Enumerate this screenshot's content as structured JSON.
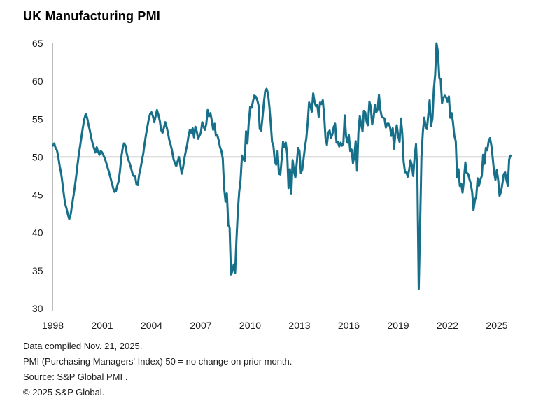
{
  "title": "UK Manufacturing PMI",
  "footer": {
    "line1": "Data compiled Nov. 21, 2025.",
    "line2": "PMI (Purchasing Managers' Index) 50 = no change on prior month.",
    "line3": "Source: S&P Global PMI .",
    "line4": "© 2025 S&P Global."
  },
  "chart_data": {
    "type": "line",
    "title": "UK Manufacturing PMI",
    "frequency": "monthly",
    "x_start": "1998-01",
    "x_end": "2025-11",
    "xlabel": "",
    "ylabel": "",
    "ylim": [
      30,
      65
    ],
    "yticks": [
      30,
      35,
      40,
      45,
      50,
      55,
      60,
      65
    ],
    "xticks": [
      1998,
      2001,
      2004,
      2007,
      2010,
      2013,
      2016,
      2019,
      2022,
      2025
    ],
    "reference_line": 50,
    "grid": "horizontal reference line at 50 only",
    "legend_position": "none",
    "line_color": "#17708a",
    "axis_color": "#a6a6a6",
    "series": [
      {
        "name": "UK Manufacturing PMI",
        "values": [
          51.5,
          51.8,
          51.2,
          50.9,
          50.0,
          48.8,
          47.9,
          46.6,
          45.1,
          43.8,
          43.2,
          42.4,
          41.8,
          42.4,
          43.6,
          44.8,
          46.0,
          47.4,
          49.0,
          50.4,
          51.6,
          52.8,
          54.0,
          55.0,
          55.7,
          55.2,
          54.3,
          53.5,
          52.6,
          51.8,
          51.2,
          50.6,
          51.3,
          50.7,
          50.3,
          50.8,
          50.6,
          50.2,
          49.8,
          49.2,
          48.6,
          48.0,
          47.3,
          46.6,
          45.9,
          45.4,
          45.5,
          46.2,
          46.8,
          48.2,
          50.0,
          51.2,
          51.8,
          51.5,
          50.4,
          49.7,
          49.2,
          48.6,
          47.9,
          47.5,
          47.5,
          46.4,
          46.3,
          47.7,
          48.5,
          49.5,
          50.5,
          51.8,
          53.0,
          54.0,
          55.0,
          55.7,
          55.9,
          55.4,
          54.6,
          55.4,
          56.2,
          55.6,
          54.8,
          53.6,
          53.2,
          53.8,
          54.6,
          54.0,
          53.2,
          52.2,
          51.6,
          50.8,
          49.8,
          49.2,
          48.8,
          49.4,
          50.0,
          49.0,
          47.8,
          48.6,
          49.8,
          50.8,
          51.6,
          52.8,
          53.6,
          53.2,
          53.8,
          52.6,
          54.0,
          53.4,
          52.4,
          52.8,
          53.2,
          54.6,
          54.0,
          53.6,
          54.4,
          56.2,
          55.4,
          55.8,
          54.8,
          53.6,
          54.4,
          52.8,
          52.9,
          52.2,
          51.3,
          50.8,
          49.8,
          45.9,
          44.1,
          45.2,
          41.0,
          40.7,
          34.5,
          34.9,
          35.8,
          34.7,
          39.1,
          42.9,
          45.4,
          47.0,
          50.2,
          49.7,
          49.5,
          53.4,
          51.8,
          54.6,
          56.6,
          56.5,
          57.3,
          58.1,
          58.0,
          57.6,
          56.9,
          53.7,
          53.5,
          55.2,
          57.2,
          58.7,
          59.0,
          58.4,
          56.7,
          54.4,
          52.0,
          51.4,
          49.4,
          49.0,
          50.8,
          47.8,
          47.7,
          49.7,
          52.0,
          51.3,
          51.9,
          50.4,
          45.9,
          48.4,
          45.2,
          49.6,
          48.1,
          47.3,
          49.2,
          51.2,
          50.8,
          47.9,
          48.3,
          49.8,
          51.3,
          52.5,
          54.6,
          57.2,
          56.7,
          56.0,
          58.4,
          57.3,
          56.7,
          56.9,
          55.3,
          57.2,
          57.0,
          57.5,
          55.4,
          52.5,
          51.6,
          53.2,
          53.5,
          52.5,
          53.0,
          54.0,
          54.4,
          51.9,
          52.0,
          51.4,
          51.9,
          51.5,
          51.8,
          55.5,
          52.7,
          51.9,
          52.9,
          50.8,
          51.0,
          49.2,
          50.1,
          52.1,
          48.2,
          53.3,
          55.4,
          54.3,
          53.4,
          56.1,
          55.9,
          54.6,
          54.2,
          57.3,
          56.7,
          54.3,
          55.1,
          56.9,
          55.9,
          56.3,
          58.2,
          56.3,
          55.3,
          55.2,
          55.1,
          53.9,
          54.4,
          54.4,
          54.0,
          52.8,
          53.8,
          51.1,
          53.1,
          54.2,
          52.8,
          52.0,
          55.1,
          53.1,
          49.4,
          48.0,
          48.0,
          47.4,
          48.3,
          49.6,
          48.9,
          47.5,
          50.0,
          51.7,
          47.8,
          32.6,
          40.7,
          50.1,
          53.3,
          55.2,
          54.1,
          53.7,
          55.6,
          57.5,
          54.1,
          55.1,
          58.9,
          60.9,
          65.0,
          63.9,
          60.4,
          60.3,
          57.1,
          57.8,
          58.1,
          57.9,
          57.3,
          58.0,
          55.2,
          55.8,
          54.6,
          52.8,
          52.1,
          47.3,
          48.4,
          46.2,
          46.5,
          45.3,
          47.0,
          49.3,
          47.9,
          47.8,
          47.1,
          46.5,
          45.3,
          43.0,
          44.3,
          44.8,
          47.2,
          46.2,
          47.0,
          47.5,
          50.3,
          49.1,
          51.2,
          50.9,
          52.1,
          52.5,
          51.5,
          49.9,
          48.0,
          47.0,
          48.3,
          46.9,
          44.9,
          45.4,
          46.4,
          47.7,
          48.0,
          47.0,
          46.2,
          49.7,
          50.2
        ]
      }
    ]
  }
}
